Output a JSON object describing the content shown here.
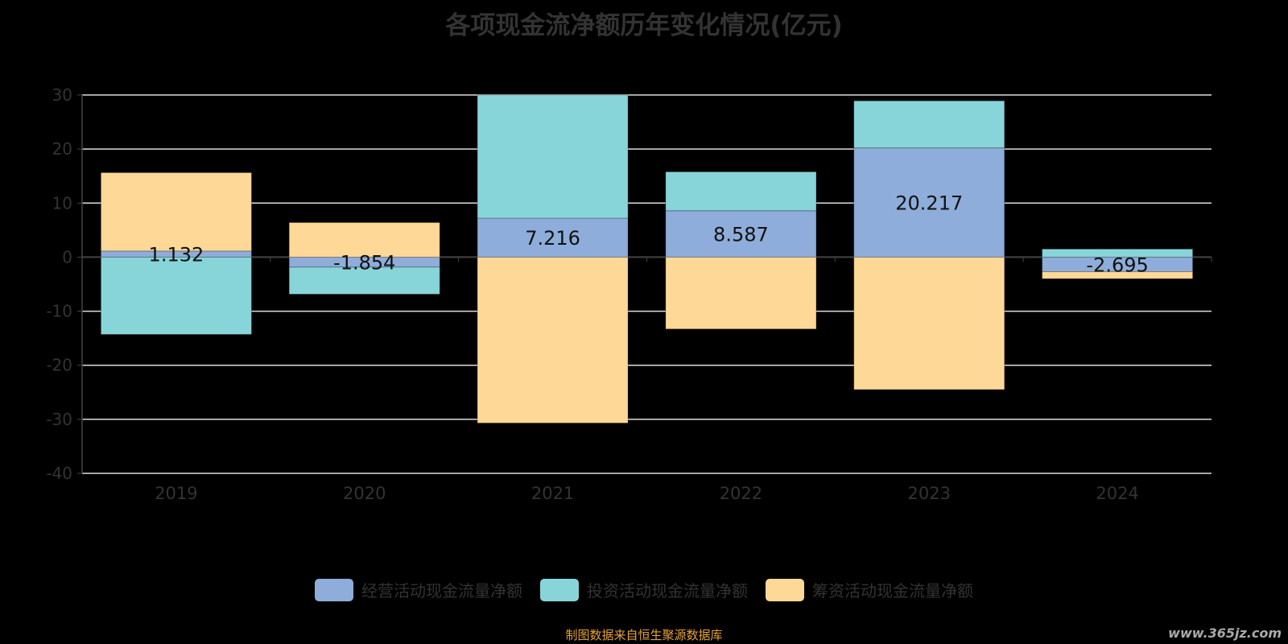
{
  "chart_data": {
    "type": "bar",
    "stacked": true,
    "title": "各项现金流净额历年变化情况(亿元)",
    "categories": [
      "2019",
      "2020",
      "2021",
      "2022",
      "2023",
      "2024"
    ],
    "ylim": [
      -40,
      30
    ],
    "yticks": [
      30,
      20,
      10,
      0,
      -10,
      -20,
      -30,
      -40
    ],
    "grid": true,
    "legend_position": "bottom",
    "series": [
      {
        "name": "经营活动现金流量净额",
        "color": "#8eadda",
        "values": [
          1.132,
          -1.854,
          7.216,
          8.587,
          20.217,
          -2.695
        ],
        "labels": [
          "1.132",
          "-1.854",
          "7.216",
          "8.587",
          "20.217",
          "-2.695"
        ]
      },
      {
        "name": "投资活动现金流量净额",
        "color": "#88d5d9",
        "values": [
          -14.3,
          -5.0,
          22.8,
          7.2,
          8.7,
          1.5
        ]
      },
      {
        "name": "筹资活动现金流量净额",
        "color": "#fed897",
        "values": [
          14.5,
          6.4,
          -30.7,
          -13.3,
          -24.5,
          -1.3
        ]
      }
    ]
  },
  "source": "制图数据来自恒生聚源数据库",
  "watermark": "www.365jz.com"
}
